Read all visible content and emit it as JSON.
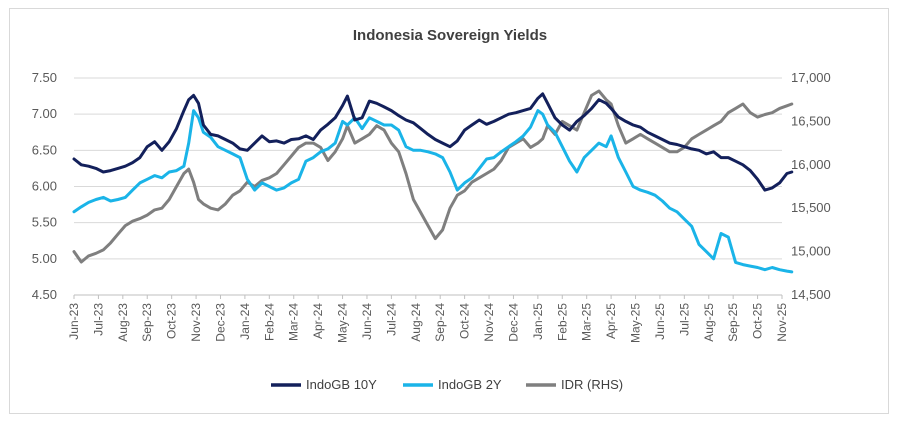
{
  "chart_data": {
    "type": "line",
    "title": "Indonesia Sovereign Yields",
    "xlabel": "",
    "ylabel": "",
    "ylim": [
      4.5,
      7.5
    ],
    "y2lim": [
      14500,
      17000
    ],
    "y_ticks": [
      "4.50",
      "5.00",
      "5.50",
      "6.00",
      "6.50",
      "7.00",
      "7.50"
    ],
    "y2_ticks": [
      "14,500",
      "15,000",
      "15,500",
      "16,000",
      "16,500",
      "17,000"
    ],
    "categories": [
      "Jun-23",
      "Jul-23",
      "Aug-23",
      "Sep-23",
      "Oct-23",
      "Nov-23",
      "Dec-23",
      "Jan-24",
      "Feb-24",
      "Mar-24",
      "Apr-24",
      "May-24",
      "Jun-24",
      "Jul-24",
      "Aug-24",
      "Sep-24",
      "Oct-24",
      "Nov-24",
      "Dec-24",
      "Jan-25",
      "Feb-25",
      "Mar-25",
      "Apr-25",
      "May-25",
      "Jun-25",
      "Jul-25",
      "Aug-25",
      "Sep-25",
      "Oct-25",
      "Nov-25"
    ],
    "series": [
      {
        "name": "IndoGB 10Y",
        "axis": "left",
        "color": "#13205b",
        "x": [
          0,
          0.3,
          0.6,
          0.9,
          1.2,
          1.5,
          1.8,
          2.1,
          2.4,
          2.7,
          3.0,
          3.3,
          3.6,
          3.9,
          4.2,
          4.5,
          4.7,
          4.9,
          5.1,
          5.3,
          5.6,
          5.9,
          6.2,
          6.5,
          6.8,
          7.1,
          7.4,
          7.7,
          8.0,
          8.3,
          8.6,
          8.9,
          9.2,
          9.5,
          9.8,
          10.1,
          10.4,
          10.7,
          11.0,
          11.2,
          11.5,
          11.8,
          12.1,
          12.4,
          12.7,
          13.0,
          13.3,
          13.6,
          13.9,
          14.2,
          14.5,
          14.8,
          15.1,
          15.4,
          15.7,
          16.0,
          16.3,
          16.6,
          16.9,
          17.2,
          17.5,
          17.8,
          18.1,
          18.4,
          18.7,
          19.0,
          19.2,
          19.4,
          19.7,
          20.0,
          20.3,
          20.6,
          20.9,
          21.2,
          21.5,
          21.8,
          22.0,
          22.3,
          22.6,
          22.9,
          23.2,
          23.5,
          23.8,
          24.1,
          24.4,
          24.7,
          25.0,
          25.3,
          25.6,
          25.9,
          26.2,
          26.5,
          26.8,
          27.1,
          27.4,
          27.7,
          28.0,
          28.3,
          28.6,
          28.9,
          29.2,
          29.4
        ],
        "values": [
          6.38,
          6.3,
          6.28,
          6.25,
          6.2,
          6.22,
          6.25,
          6.28,
          6.33,
          6.4,
          6.55,
          6.62,
          6.5,
          6.62,
          6.8,
          7.05,
          7.2,
          7.26,
          7.15,
          6.85,
          6.72,
          6.7,
          6.65,
          6.6,
          6.52,
          6.5,
          6.6,
          6.7,
          6.62,
          6.63,
          6.6,
          6.65,
          6.66,
          6.7,
          6.65,
          6.78,
          6.86,
          6.95,
          7.12,
          7.25,
          6.92,
          6.95,
          7.18,
          7.15,
          7.1,
          7.05,
          6.98,
          6.92,
          6.88,
          6.8,
          6.72,
          6.65,
          6.6,
          6.55,
          6.63,
          6.78,
          6.85,
          6.92,
          6.86,
          6.9,
          6.95,
          7.0,
          7.02,
          7.05,
          7.08,
          7.22,
          7.28,
          7.15,
          6.95,
          6.85,
          6.78,
          6.9,
          6.98,
          7.08,
          7.2,
          7.15,
          7.08,
          6.96,
          6.9,
          6.85,
          6.82,
          6.75,
          6.7,
          6.65,
          6.6,
          6.58,
          6.55,
          6.52,
          6.5,
          6.45,
          6.48,
          6.4,
          6.4,
          6.35,
          6.3,
          6.22,
          6.1,
          5.95,
          5.98,
          6.05,
          6.18,
          6.2
        ]
      },
      {
        "name": "IndoGB 2Y",
        "axis": "left",
        "color": "#1ab4e8",
        "x": [
          0,
          0.3,
          0.6,
          0.9,
          1.2,
          1.5,
          1.8,
          2.1,
          2.4,
          2.7,
          3.0,
          3.3,
          3.6,
          3.9,
          4.2,
          4.5,
          4.7,
          4.9,
          5.1,
          5.3,
          5.6,
          5.9,
          6.2,
          6.5,
          6.8,
          7.1,
          7.4,
          7.7,
          8.0,
          8.3,
          8.6,
          8.9,
          9.2,
          9.5,
          9.8,
          10.1,
          10.4,
          10.7,
          11.0,
          11.2,
          11.5,
          11.8,
          12.1,
          12.4,
          12.7,
          13.0,
          13.3,
          13.6,
          13.9,
          14.2,
          14.5,
          14.8,
          15.1,
          15.4,
          15.7,
          16.0,
          16.3,
          16.6,
          16.9,
          17.2,
          17.5,
          17.8,
          18.1,
          18.4,
          18.7,
          19.0,
          19.2,
          19.4,
          19.7,
          20.0,
          20.3,
          20.6,
          20.9,
          21.2,
          21.5,
          21.8,
          22.0,
          22.3,
          22.6,
          22.9,
          23.2,
          23.5,
          23.8,
          24.1,
          24.4,
          24.7,
          25.0,
          25.3,
          25.6,
          25.9,
          26.2,
          26.5,
          26.8,
          27.1,
          27.4,
          27.7,
          28.0,
          28.3,
          28.6,
          28.9,
          29.2,
          29.4
        ],
        "values": [
          5.65,
          5.72,
          5.78,
          5.82,
          5.85,
          5.8,
          5.82,
          5.85,
          5.95,
          6.05,
          6.1,
          6.15,
          6.12,
          6.2,
          6.22,
          6.28,
          6.6,
          7.05,
          6.95,
          6.75,
          6.68,
          6.55,
          6.5,
          6.45,
          6.4,
          6.1,
          5.95,
          6.05,
          6.0,
          5.95,
          5.98,
          6.05,
          6.1,
          6.35,
          6.4,
          6.48,
          6.52,
          6.6,
          6.9,
          6.85,
          6.95,
          6.8,
          6.95,
          6.9,
          6.85,
          6.85,
          6.78,
          6.55,
          6.5,
          6.5,
          6.48,
          6.45,
          6.4,
          6.2,
          5.95,
          6.05,
          6.12,
          6.25,
          6.38,
          6.4,
          6.48,
          6.55,
          6.62,
          6.7,
          6.82,
          7.05,
          7.0,
          6.85,
          6.75,
          6.55,
          6.35,
          6.2,
          6.4,
          6.5,
          6.6,
          6.55,
          6.7,
          6.4,
          6.2,
          6.0,
          5.95,
          5.92,
          5.88,
          5.8,
          5.7,
          5.65,
          5.55,
          5.45,
          5.2,
          5.1,
          5.0,
          5.35,
          5.3,
          4.95,
          4.92,
          4.9,
          4.88,
          4.85,
          4.88,
          4.85,
          4.83,
          4.82
        ]
      },
      {
        "name": "IDR (RHS)",
        "axis": "right",
        "color": "#7f7f7f",
        "x": [
          0,
          0.3,
          0.6,
          0.9,
          1.2,
          1.5,
          1.8,
          2.1,
          2.4,
          2.7,
          3.0,
          3.3,
          3.6,
          3.9,
          4.2,
          4.5,
          4.7,
          4.9,
          5.1,
          5.3,
          5.6,
          5.9,
          6.2,
          6.5,
          6.8,
          7.1,
          7.4,
          7.7,
          8.0,
          8.3,
          8.6,
          8.9,
          9.2,
          9.5,
          9.8,
          10.1,
          10.4,
          10.7,
          11.0,
          11.2,
          11.5,
          11.8,
          12.1,
          12.4,
          12.7,
          13.0,
          13.3,
          13.6,
          13.9,
          14.2,
          14.5,
          14.8,
          15.1,
          15.4,
          15.7,
          16.0,
          16.3,
          16.6,
          16.9,
          17.2,
          17.5,
          17.8,
          18.1,
          18.4,
          18.7,
          19.0,
          19.2,
          19.4,
          19.7,
          20.0,
          20.3,
          20.6,
          20.9,
          21.2,
          21.5,
          21.8,
          22.0,
          22.3,
          22.6,
          22.9,
          23.2,
          23.5,
          23.8,
          24.1,
          24.4,
          24.7,
          25.0,
          25.3,
          25.6,
          25.9,
          26.2,
          26.5,
          26.8,
          27.1,
          27.4,
          27.7,
          28.0,
          28.3,
          28.6,
          28.9,
          29.2,
          29.4
        ],
        "values": [
          15000,
          14880,
          14950,
          14980,
          15020,
          15100,
          15200,
          15300,
          15350,
          15380,
          15420,
          15480,
          15500,
          15600,
          15750,
          15900,
          15950,
          15800,
          15600,
          15550,
          15500,
          15480,
          15550,
          15650,
          15700,
          15800,
          15750,
          15820,
          15850,
          15900,
          16000,
          16100,
          16200,
          16250,
          16250,
          16200,
          16050,
          16150,
          16300,
          16450,
          16250,
          16300,
          16350,
          16450,
          16400,
          16250,
          16150,
          15900,
          15600,
          15450,
          15300,
          15150,
          15250,
          15500,
          15650,
          15700,
          15800,
          15850,
          15900,
          15950,
          16050,
          16200,
          16250,
          16300,
          16200,
          16250,
          16300,
          16450,
          16350,
          16500,
          16450,
          16400,
          16600,
          16800,
          16850,
          16750,
          16700,
          16450,
          16250,
          16300,
          16350,
          16300,
          16250,
          16200,
          16150,
          16150,
          16200,
          16300,
          16350,
          16400,
          16450,
          16500,
          16600,
          16650,
          16700,
          16600,
          16550,
          16580,
          16600,
          16650,
          16680,
          16700
        ]
      }
    ],
    "legend": [
      "IndoGB 10Y",
      "IndoGB 2Y",
      "IDR (RHS)"
    ],
    "legend_position": "bottom",
    "grid": true
  }
}
